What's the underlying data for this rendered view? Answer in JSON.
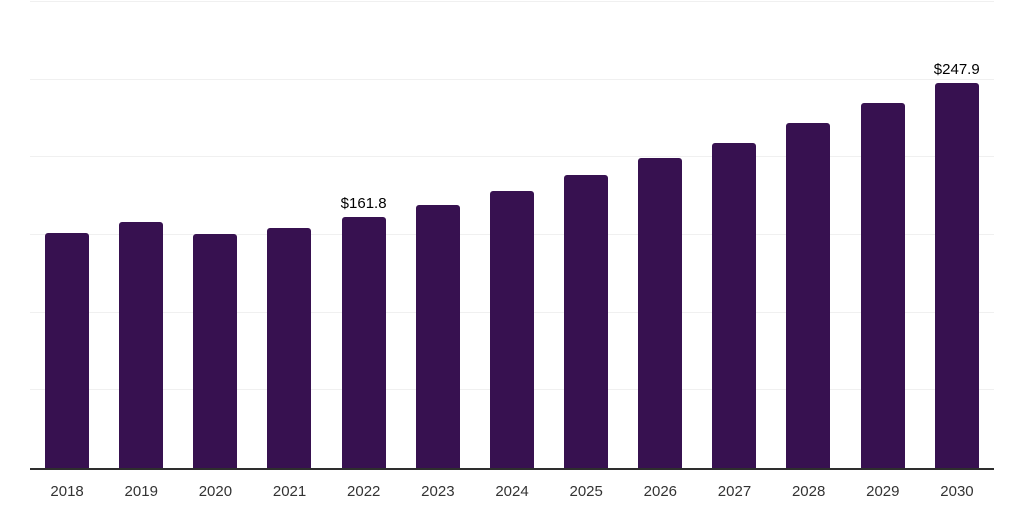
{
  "chart_data": {
    "type": "bar",
    "title": "",
    "xlabel": "",
    "ylabel": "",
    "categories": [
      "2018",
      "2019",
      "2020",
      "2021",
      "2022",
      "2023",
      "2024",
      "2025",
      "2026",
      "2027",
      "2028",
      "2029",
      "2030"
    ],
    "values": [
      151.5,
      158.3,
      150.8,
      154.2,
      161.8,
      169.5,
      178.6,
      188.6,
      199.3,
      209.3,
      222.4,
      234.7,
      247.9
    ],
    "point_labels": [
      "",
      "",
      "",
      "",
      "$161.8",
      "",
      "",
      "",
      "",
      "",
      "",
      "",
      "$247.9"
    ],
    "ylim": [
      0,
      300
    ],
    "gridline_step": 50,
    "grid": "horizontal",
    "y_axis_tick_labels_visible": false,
    "legend_position": "none",
    "colors": {
      "bar": "#371150",
      "axis_line": "#2e2e2e",
      "gridline": "#f0f0f0",
      "tick_label": "#333333",
      "value_label": "#000000",
      "background": "#ffffff"
    }
  }
}
